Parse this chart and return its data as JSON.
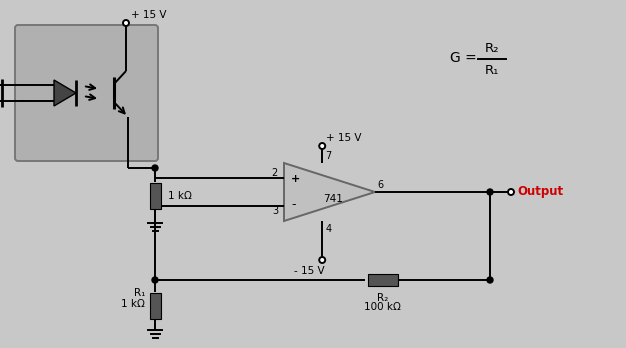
{
  "bg_color": "#c8c8c8",
  "resistor_color": "#555555",
  "line_color": "#000000",
  "opto_fill": "#b0b0b0",
  "opamp_fill": "#c0c0c0",
  "vplus_label": "+ 15 V",
  "vplus2_label": "+ 15 V",
  "vminus_label": "- 15 V",
  "resistor_1k_label": "1 kΩ",
  "R1_label": "R₁",
  "R1_val": "1 kΩ",
  "R2_label": "R₂",
  "R2_val": "100 kΩ",
  "output_label": "Output",
  "opamp_label": "741",
  "pin2": "2",
  "pin3": "3",
  "pin4": "4",
  "pin6": "6",
  "pin7": "7",
  "plus_sign": "+",
  "minus_sign": "-",
  "gain_g": "G =",
  "gain_r2": "R₂",
  "gain_r1": "R₁"
}
